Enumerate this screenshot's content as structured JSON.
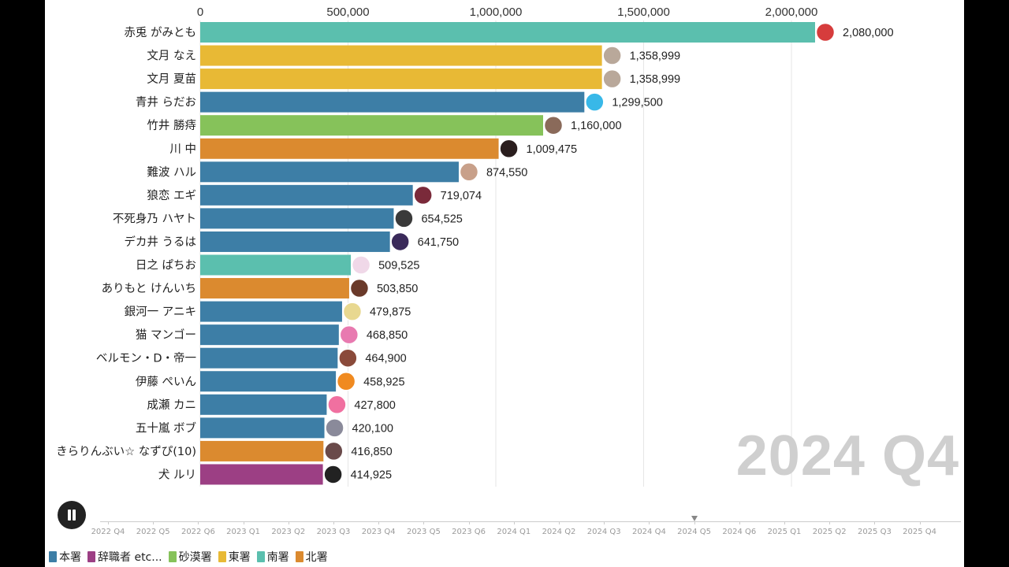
{
  "chart_data": {
    "type": "bar",
    "orientation": "horizontal",
    "title": "",
    "period": "2024 Q4",
    "xlim": [
      0,
      2250000
    ],
    "x_ticks": [
      0,
      500000,
      1000000,
      1500000,
      2000000
    ],
    "x_tick_labels": [
      "0",
      "500,000",
      "1,000,000",
      "1,500,000",
      "2,000,000"
    ],
    "categories": [
      "赤兎 がみとも",
      "文月 なえ",
      "文月 夏苗",
      "青井 らだお",
      "竹井 勝痔",
      "川 中",
      "難波 ハル",
      "狼恋 エギ",
      "不死身乃 ハヤト",
      "デカ井 うるは",
      "日之 ぱちお",
      "ありもと けんいち",
      "銀河一 アニキ",
      "猫 マンゴー",
      "ベルモン・D・帝一",
      "伊藤 ぺいん",
      "成瀬 カニ",
      "五十嵐 ボブ",
      "きらりんぶい☆ なずぴ(10)",
      "犬 ルリ"
    ],
    "values": [
      2080000,
      1358999,
      1358999,
      1299500,
      1160000,
      1009475,
      874550,
      719074,
      654525,
      641750,
      509525,
      503850,
      479875,
      468850,
      464900,
      458925,
      427800,
      420100,
      416850,
      414925
    ],
    "value_labels": [
      "2,080,000",
      "1,358,999",
      "1,358,999",
      "1,299,500",
      "1,160,000",
      "1,009,475",
      "874,550",
      "719,074",
      "654,525",
      "641,750",
      "509,525",
      "503,850",
      "479,875",
      "468,850",
      "464,900",
      "458,925",
      "427,800",
      "420,100",
      "416,850",
      "414,925"
    ],
    "groups": [
      "南署",
      "東署",
      "東署",
      "本署",
      "砂漠署",
      "北署",
      "本署",
      "本署",
      "本署",
      "本署",
      "南署",
      "北署",
      "本署",
      "本署",
      "本署",
      "本署",
      "本署",
      "本署",
      "北署",
      "辞職者 etc..."
    ],
    "avatar_colors": [
      "#d63c3c",
      "#b9a89a",
      "#b9a89a",
      "#38b8e8",
      "#8a6a5a",
      "#2a1e1e",
      "#c8a08a",
      "#7a2a3a",
      "#3a3a3a",
      "#3a2a5a",
      "#f0d8e8",
      "#6a3a2a",
      "#e8d890",
      "#e87ab0",
      "#8a4a3a",
      "#f08a20",
      "#f070a0",
      "#8a8a9a",
      "#6a4a4a",
      "#222222"
    ],
    "legend": [
      {
        "label": "本署",
        "color": "#3d7ea6"
      },
      {
        "label": "辞職者 etc...",
        "color": "#9c3f84"
      },
      {
        "label": "砂漠署",
        "color": "#86c25a"
      },
      {
        "label": "東署",
        "color": "#e8b935"
      },
      {
        "label": "南署",
        "color": "#5bbfae"
      },
      {
        "label": "北署",
        "color": "#db8a2f"
      }
    ]
  },
  "timeline": {
    "labels": [
      "2022 Q4",
      "2022 Q5",
      "2022 Q6",
      "2023 Q1",
      "2023 Q2",
      "2023 Q3",
      "2023 Q4",
      "2023 Q5",
      "2023 Q6",
      "2024 Q1",
      "2024 Q2",
      "2024 Q3",
      "2024 Q4",
      "2024 Q5",
      "2024 Q6",
      "2025 Q1",
      "2025 Q2",
      "2025 Q3",
      "2025 Q4"
    ],
    "current_index": 13
  },
  "controls": {
    "pause_icon": "pause-icon"
  }
}
